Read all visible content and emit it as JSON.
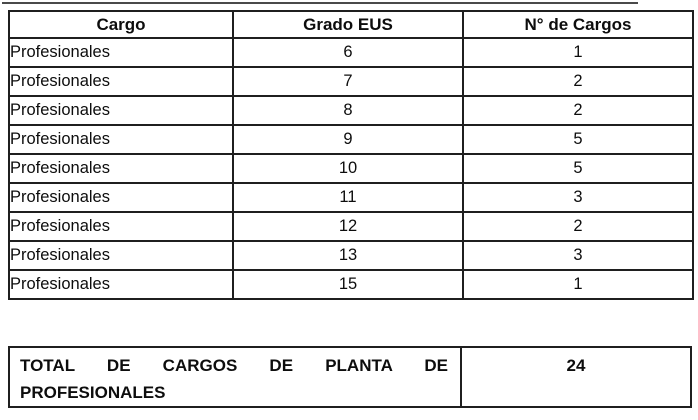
{
  "document": {
    "table": {
      "headers": [
        "Cargo",
        "Grado EUS",
        "N° de Cargos"
      ],
      "rows": [
        [
          "Profesionales",
          "6",
          "1"
        ],
        [
          "Profesionales",
          "7",
          "2"
        ],
        [
          "Profesionales",
          "8",
          "2"
        ],
        [
          "Profesionales",
          "9",
          "5"
        ],
        [
          "Profesionales",
          "10",
          "5"
        ],
        [
          "Profesionales",
          "11",
          "3"
        ],
        [
          "Profesionales",
          "12",
          "2"
        ],
        [
          "Profesionales",
          "13",
          "3"
        ],
        [
          "Profesionales",
          "15",
          "1"
        ]
      ]
    },
    "summary": {
      "label_line1": "TOTAL DE CARGOS DE PLANTA DE",
      "label_line2": "PROFESIONALES",
      "value": "24"
    },
    "colors": {
      "border": "#1f1f1f",
      "text": "#0d0d0d",
      "background": "#ffffff"
    }
  }
}
